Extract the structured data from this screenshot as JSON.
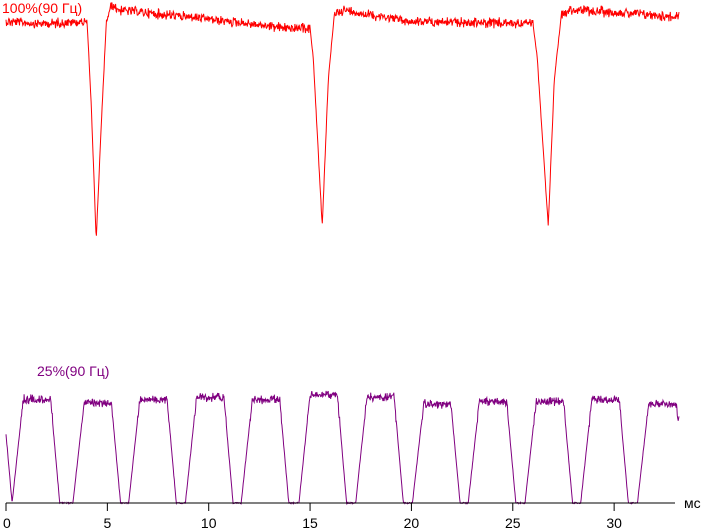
{
  "chart_data": {
    "type": "line",
    "xlabel": "мс",
    "xlim": [
      0,
      33.2
    ],
    "x_ticks": [
      0,
      5,
      10,
      15,
      20,
      25,
      30
    ],
    "x_tick_labels": [
      "0",
      "5",
      "10",
      "15",
      "20",
      "25",
      "30"
    ],
    "grid": false,
    "legend": "none",
    "series": [
      {
        "name": "100%(90 Гц)",
        "color": "#ff0000",
        "noise": 4,
        "x": [
          0.0,
          2.0,
          4.0,
          4.2,
          4.45,
          4.7,
          4.95,
          5.2,
          5.6,
          10.0,
          14.0,
          15.0,
          15.15,
          15.6,
          15.9,
          16.2,
          16.6,
          20.0,
          26.0,
          26.2,
          26.75,
          27.05,
          27.4,
          27.7,
          30.0,
          33.2
        ],
        "y": [
          0.95,
          0.94,
          0.95,
          0.6,
          0.0,
          0.5,
          0.95,
          1.02,
          1.0,
          0.96,
          0.92,
          0.92,
          0.8,
          0.06,
          0.7,
          0.98,
          1.0,
          0.95,
          0.94,
          0.8,
          0.06,
          0.7,
          0.98,
          1.0,
          0.99,
          0.97
        ]
      },
      {
        "name": "25%(90 Гц)",
        "color": "#800080",
        "noise": 3,
        "pulse_starts": [
          0.3,
          3.3,
          6.05,
          8.85,
          11.6,
          14.45,
          17.25,
          20.05,
          22.8,
          25.6,
          28.35,
          31.15
        ],
        "pulse_high": [
          0.9,
          0.87,
          0.9,
          0.92,
          0.9,
          0.94,
          0.92,
          0.86,
          0.88,
          0.88,
          0.9,
          0.86
        ],
        "period_low": 0.0
      }
    ]
  }
}
